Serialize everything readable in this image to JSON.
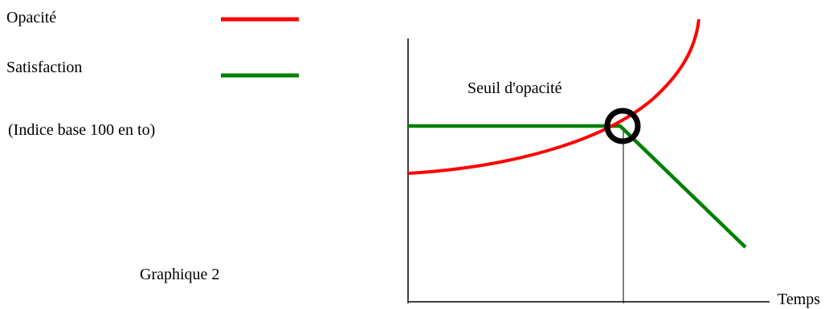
{
  "legend": {
    "items": [
      {
        "label": "Opacité",
        "color": "#ff0000"
      },
      {
        "label": "Satisfaction",
        "color": "#008000"
      }
    ]
  },
  "note": "(Indice base 100 en to)",
  "caption": "Graphique 2",
  "annotation": {
    "label": "Seuil d'opacité",
    "marker_color": "#000000"
  },
  "axes": {
    "x_label": "Temps",
    "color": "#000000"
  }
}
